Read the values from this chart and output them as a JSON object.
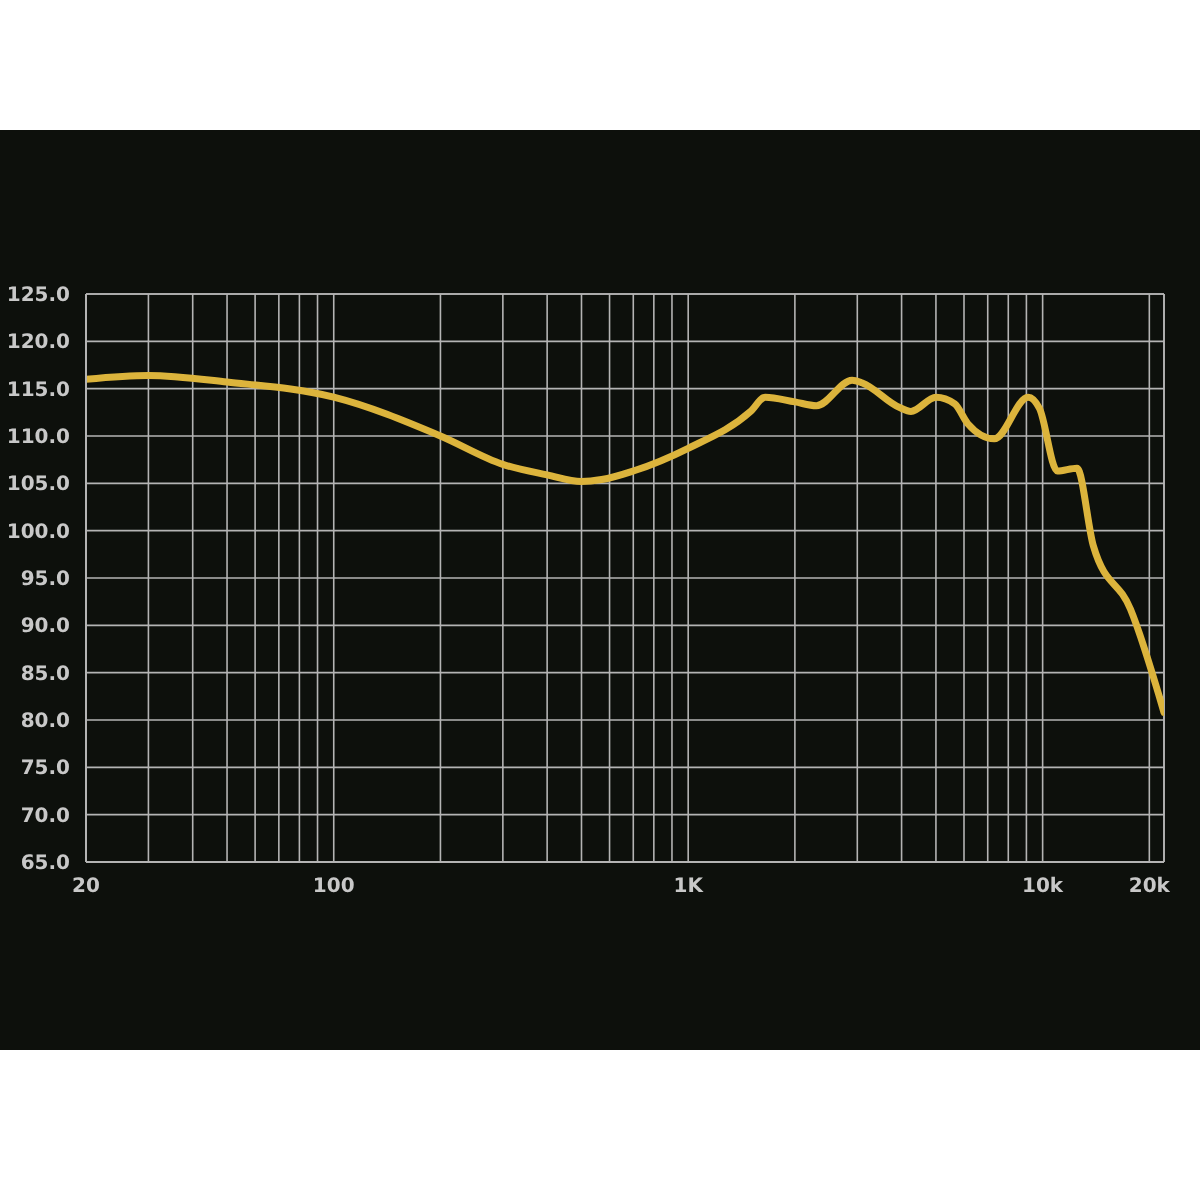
{
  "chart_data": {
    "type": "line",
    "log": "x",
    "grid": true,
    "marker": "none",
    "xlim": [
      20,
      22000
    ],
    "ylim": [
      65,
      125
    ],
    "xticks": [
      {
        "value": 20,
        "label": "20"
      },
      {
        "value": 30,
        "label": null
      },
      {
        "value": 40,
        "label": null
      },
      {
        "value": 50,
        "label": null
      },
      {
        "value": 60,
        "label": null
      },
      {
        "value": 70,
        "label": null
      },
      {
        "value": 80,
        "label": null
      },
      {
        "value": 90,
        "label": null
      },
      {
        "value": 100,
        "label": "100"
      },
      {
        "value": 200,
        "label": null
      },
      {
        "value": 300,
        "label": null
      },
      {
        "value": 400,
        "label": null
      },
      {
        "value": 500,
        "label": null
      },
      {
        "value": 600,
        "label": null
      },
      {
        "value": 700,
        "label": null
      },
      {
        "value": 800,
        "label": null
      },
      {
        "value": 900,
        "label": null
      },
      {
        "value": 1000,
        "label": "1K"
      },
      {
        "value": 2000,
        "label": null
      },
      {
        "value": 3000,
        "label": null
      },
      {
        "value": 4000,
        "label": null
      },
      {
        "value": 5000,
        "label": null
      },
      {
        "value": 6000,
        "label": null
      },
      {
        "value": 7000,
        "label": null
      },
      {
        "value": 8000,
        "label": null
      },
      {
        "value": 9000,
        "label": null
      },
      {
        "value": 10000,
        "label": "10k"
      },
      {
        "value": 20000,
        "label": "20k"
      }
    ],
    "yticks": [
      {
        "value": 65,
        "label": "65.0"
      },
      {
        "value": 70,
        "label": "70.0"
      },
      {
        "value": 75,
        "label": "75.0"
      },
      {
        "value": 80,
        "label": "80.0"
      },
      {
        "value": 85,
        "label": "85.0"
      },
      {
        "value": 90,
        "label": "90.0"
      },
      {
        "value": 95,
        "label": "95.0"
      },
      {
        "value": 100,
        "label": "100.0"
      },
      {
        "value": 105,
        "label": "105.0"
      },
      {
        "value": 110,
        "label": "110.0"
      },
      {
        "value": 115,
        "label": "115.0"
      },
      {
        "value": 120,
        "label": "120.0"
      },
      {
        "value": 125,
        "label": "125.0"
      }
    ],
    "x": [
      20,
      30,
      50,
      100,
      200,
      300,
      400,
      500,
      570,
      700,
      1000,
      1500,
      1650,
      2000,
      2300,
      2900,
      3100,
      3950,
      4250,
      5000,
      5650,
      6150,
      7300,
      9100,
      9800,
      11000,
      12500,
      13900,
      17700,
      22000
    ],
    "series": [
      {
        "color": "#dcb43c",
        "values": [
          116.0,
          116.4,
          115.7,
          114.1,
          110.0,
          107.0,
          105.9,
          105.2,
          105.4,
          106.3,
          108.7,
          112.6,
          114.1,
          113.6,
          113.2,
          115.9,
          115.6,
          113.0,
          112.6,
          114.1,
          113.4,
          111.3,
          109.7,
          114.1,
          112.9,
          106.3,
          106.6,
          98.4,
          91.7,
          80.8
        ]
      }
    ]
  }
}
